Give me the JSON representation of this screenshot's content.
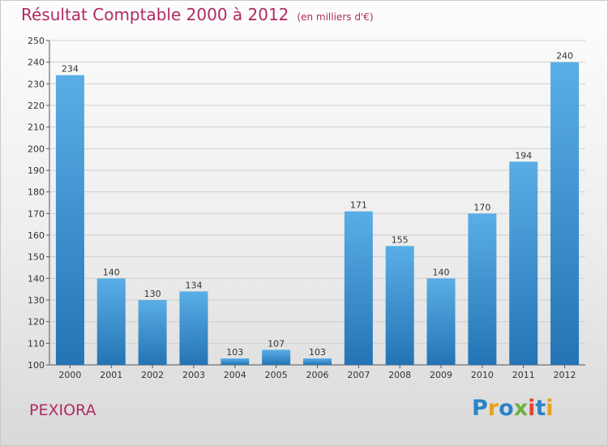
{
  "header": {
    "title": "Résultat Comptable 2000 à 2012",
    "subtitle": "(en milliers d'€)"
  },
  "commune": "PEXIORA",
  "logo": {
    "letters": [
      "P",
      "r",
      "o",
      "x",
      "i",
      "t",
      "i"
    ],
    "colors": [
      "#2b83c6",
      "#e8a21a",
      "#2b83c6",
      "#6cb33f",
      "#e0462f",
      "#2b83c6",
      "#e8a21a"
    ]
  },
  "colors": {
    "bar_top": "#5aaee6",
    "bar_bottom": "#2474b5",
    "title": "#b02a63"
  },
  "chart_data": {
    "type": "bar",
    "categories": [
      "2000",
      "2001",
      "2002",
      "2003",
      "2004",
      "2005",
      "2006",
      "2007",
      "2008",
      "2009",
      "2010",
      "2011",
      "2012"
    ],
    "values": [
      234,
      140,
      130,
      134,
      103,
      107,
      103,
      171,
      155,
      140,
      170,
      194,
      240
    ],
    "data_labels": [
      "234",
      "140",
      "130",
      "134",
      "103",
      "107",
      "103",
      "171",
      "155",
      "140",
      "170",
      "194",
      "240"
    ],
    "ylim": [
      100,
      250
    ],
    "yticks": [
      "100",
      "110",
      "120",
      "130",
      "140",
      "150",
      "160",
      "170",
      "180",
      "190",
      "200",
      "210",
      "220",
      "230",
      "240",
      "250"
    ],
    "grid": true
  }
}
